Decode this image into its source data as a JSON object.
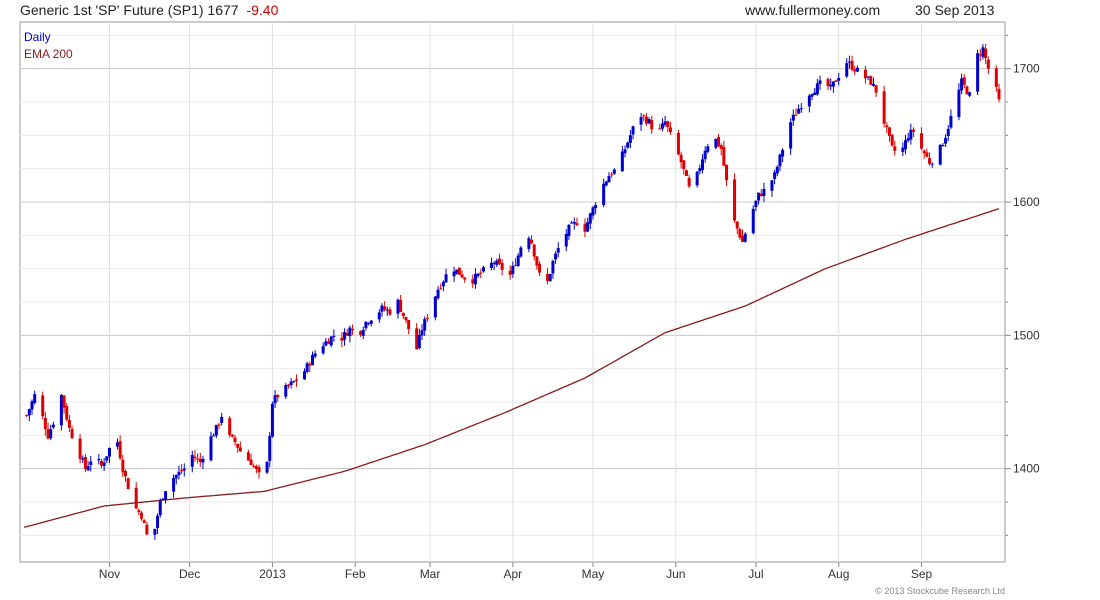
{
  "header": {
    "title": "Generic 1st 'SP' Future (SP1) 1677",
    "change": "-9.40",
    "website": "www.fullermoney.com",
    "date": "30 Sep 2013"
  },
  "footer": {
    "copyright": "© 2013 Stockcube Research Ltd"
  },
  "colors": {
    "up": "#0000cc",
    "down": "#dd0000",
    "ema": "#8b1a1a",
    "grid": "#d9d9d9",
    "axis": "#888888"
  },
  "chart_data": {
    "type": "candlestick",
    "legend": [
      {
        "label": "Daily",
        "color": "#0000cc"
      },
      {
        "label": "EMA 200",
        "color": "#8b1a1a"
      }
    ],
    "legend_position": "top-left",
    "grid": true,
    "y_axis_position": "right",
    "ylim": [
      1330,
      1735
    ],
    "y_ticks": [
      1400,
      1500,
      1600,
      1700
    ],
    "x_tick_labels": [
      {
        "label": "Nov",
        "day": 32
      },
      {
        "label": "Dec",
        "day": 62
      },
      {
        "label": "2013",
        "day": 93
      },
      {
        "label": "Feb",
        "day": 124
      },
      {
        "label": "Mar",
        "day": 152
      },
      {
        "label": "Apr",
        "day": 183
      },
      {
        "label": "May",
        "day": 213
      },
      {
        "label": "Jun",
        "day": 244
      },
      {
        "label": "Jul",
        "day": 274
      },
      {
        "label": "Aug",
        "day": 305
      },
      {
        "label": "Sep",
        "day": 336
      }
    ],
    "x_range_days": [
      0,
      365
    ],
    "close_anchors": [
      [
        1,
        1440
      ],
      [
        4,
        1455
      ],
      [
        6,
        1445
      ],
      [
        9,
        1425
      ],
      [
        12,
        1440
      ],
      [
        14,
        1455
      ],
      [
        17,
        1430
      ],
      [
        20,
        1415
      ],
      [
        23,
        1400
      ],
      [
        26,
        1410
      ],
      [
        29,
        1402
      ],
      [
        32,
        1415
      ],
      [
        35,
        1420
      ],
      [
        37,
        1400
      ],
      [
        40,
        1380
      ],
      [
        42,
        1370
      ],
      [
        44,
        1365
      ],
      [
        46,
        1350
      ],
      [
        48,
        1345
      ],
      [
        51,
        1375
      ],
      [
        54,
        1390
      ],
      [
        57,
        1395
      ],
      [
        60,
        1400
      ],
      [
        63,
        1410
      ],
      [
        66,
        1405
      ],
      [
        69,
        1420
      ],
      [
        72,
        1430
      ],
      [
        74,
        1440
      ],
      [
        76,
        1425
      ],
      [
        79,
        1420
      ],
      [
        82,
        1410
      ],
      [
        85,
        1405
      ],
      [
        88,
        1395
      ],
      [
        90,
        1380
      ],
      [
        93,
        1450
      ],
      [
        95,
        1455
      ],
      [
        98,
        1460
      ],
      [
        101,
        1465
      ],
      [
        104,
        1470
      ],
      [
        107,
        1480
      ],
      [
        110,
        1490
      ],
      [
        113,
        1495
      ],
      [
        116,
        1500
      ],
      [
        119,
        1498
      ],
      [
        122,
        1505
      ],
      [
        125,
        1500
      ],
      [
        128,
        1510
      ],
      [
        131,
        1515
      ],
      [
        134,
        1520
      ],
      [
        137,
        1518
      ],
      [
        140,
        1525
      ],
      [
        142,
        1515
      ],
      [
        145,
        1500
      ],
      [
        147,
        1490
      ],
      [
        149,
        1505
      ],
      [
        152,
        1520
      ],
      [
        155,
        1535
      ],
      [
        158,
        1545
      ],
      [
        161,
        1550
      ],
      [
        164,
        1545
      ],
      [
        167,
        1540
      ],
      [
        170,
        1545
      ],
      [
        173,
        1550
      ],
      [
        176,
        1555
      ],
      [
        179,
        1550
      ],
      [
        182,
        1545
      ],
      [
        185,
        1560
      ],
      [
        188,
        1580
      ],
      [
        190,
        1570
      ],
      [
        193,
        1545
      ],
      [
        196,
        1540
      ],
      [
        198,
        1555
      ],
      [
        201,
        1570
      ],
      [
        204,
        1580
      ],
      [
        207,
        1585
      ],
      [
        210,
        1580
      ],
      [
        213,
        1595
      ],
      [
        216,
        1610
      ],
      [
        219,
        1620
      ],
      [
        222,
        1625
      ],
      [
        225,
        1640
      ],
      [
        228,
        1655
      ],
      [
        231,
        1665
      ],
      [
        234,
        1660
      ],
      [
        237,
        1650
      ],
      [
        240,
        1660
      ],
      [
        243,
        1645
      ],
      [
        246,
        1630
      ],
      [
        249,
        1610
      ],
      [
        252,
        1620
      ],
      [
        255,
        1640
      ],
      [
        258,
        1650
      ],
      [
        261,
        1640
      ],
      [
        263,
        1615
      ],
      [
        266,
        1585
      ],
      [
        269,
        1570
      ],
      [
        272,
        1590
      ],
      [
        275,
        1605
      ],
      [
        278,
        1610
      ],
      [
        281,
        1620
      ],
      [
        284,
        1640
      ],
      [
        287,
        1660
      ],
      [
        290,
        1670
      ],
      [
        293,
        1680
      ],
      [
        296,
        1685
      ],
      [
        299,
        1690
      ],
      [
        302,
        1685
      ],
      [
        305,
        1695
      ],
      [
        308,
        1705
      ],
      [
        311,
        1700
      ],
      [
        314,
        1695
      ],
      [
        317,
        1690
      ],
      [
        320,
        1680
      ],
      [
        322,
        1660
      ],
      [
        325,
        1640
      ],
      [
        328,
        1635
      ],
      [
        331,
        1650
      ],
      [
        334,
        1655
      ],
      [
        336,
        1640
      ],
      [
        339,
        1630
      ],
      [
        342,
        1635
      ],
      [
        345,
        1650
      ],
      [
        348,
        1670
      ],
      [
        351,
        1690
      ],
      [
        354,
        1680
      ],
      [
        357,
        1710
      ],
      [
        359,
        1715
      ],
      [
        361,
        1700
      ],
      [
        363,
        1690
      ],
      [
        365,
        1677
      ]
    ],
    "ema_200": [
      [
        0,
        1356
      ],
      [
        30,
        1372
      ],
      [
        60,
        1378
      ],
      [
        90,
        1383
      ],
      [
        120,
        1398
      ],
      [
        150,
        1418
      ],
      [
        180,
        1442
      ],
      [
        210,
        1468
      ],
      [
        240,
        1502
      ],
      [
        270,
        1522
      ],
      [
        300,
        1550
      ],
      [
        330,
        1572
      ],
      [
        365,
        1595
      ]
    ],
    "last_close": 1677,
    "last_change": -9.4
  }
}
